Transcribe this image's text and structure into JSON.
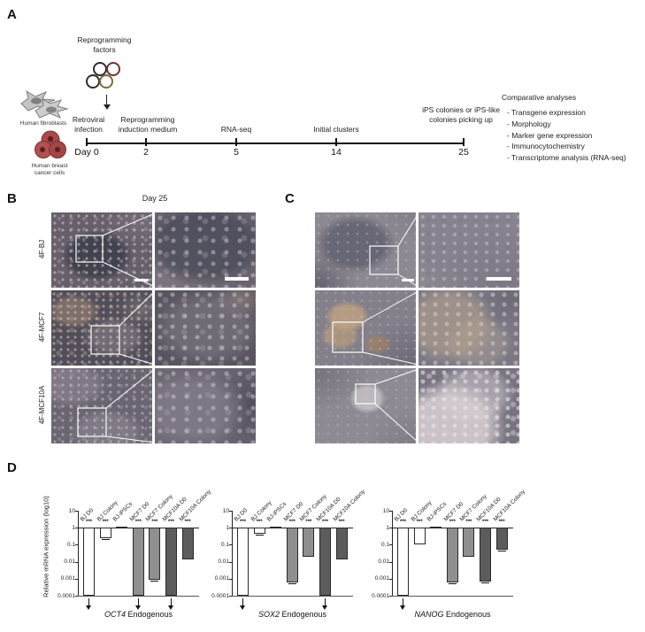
{
  "panels": {
    "a": "A",
    "b": "B",
    "c": "C",
    "d": "D"
  },
  "panel_a": {
    "reprogramming_factors": "Reprogramming factors",
    "cell_sources": [
      {
        "label": "Human fibroblasts"
      },
      {
        "label": "Human breast cancer cells"
      }
    ],
    "timeline": {
      "points": [
        {
          "day": "Day 0",
          "event": "Retroviral infection"
        },
        {
          "day": "2",
          "event": "Reprogramming induction medium"
        },
        {
          "day": "5",
          "event": "RNA-seq"
        },
        {
          "day": "14",
          "event": "Initial clusters"
        },
        {
          "day": "25",
          "event": "iPS colonies or iPS-like colonies picking up"
        }
      ]
    },
    "comparative": {
      "title": "Comparative analyses",
      "items": [
        "- Transgene expression",
        "- Morphology",
        "- Marker gene expression",
        "- Immunocytochemistry",
        "- Transcriptome analysis (RNA-seq)"
      ]
    }
  },
  "panel_b": {
    "header": "Day 25",
    "rows": [
      "4F-BJ",
      "4F-MCF7",
      "4F-MCF10A"
    ]
  },
  "panel_d": {
    "ylabel": "Relative mRNA expression (log10)"
  },
  "colors": {
    "bar_bj": "#ffffff",
    "bar_mcf7": "#8f8f8f",
    "bar_mcf10a": "#5c5c5c"
  },
  "chart_data": [
    {
      "type": "bar",
      "title_gene": "OCT4",
      "title_suffix": " Endogenous",
      "ylabel": "Relative mRNA expression (log10)",
      "yticks": [
        10,
        1,
        0.1,
        0.01,
        0.001,
        0.0001
      ],
      "ylim": [
        0.0001,
        10
      ],
      "baseline": 1,
      "categories": [
        "BJ D0",
        "BJ Colony",
        "BJ-iPSCs",
        "MCF7 D0",
        "MCF7 Colony",
        "MCF10A D0",
        "MCF10A Colony"
      ],
      "values": [
        0.0001,
        0.25,
        1.1,
        0.0001,
        0.0009,
        0.0001,
        0.014
      ],
      "below_detection": [
        true,
        false,
        false,
        true,
        false,
        true,
        false
      ],
      "significance": [
        "***",
        "***",
        "",
        "***",
        "***",
        "***",
        "***"
      ],
      "error_bars": [
        false,
        true,
        false,
        false,
        true,
        false,
        false
      ],
      "bar_colors": [
        "#ffffff",
        "#ffffff",
        "#ffffff",
        "#8f8f8f",
        "#8f8f8f",
        "#5c5c5c",
        "#5c5c5c"
      ]
    },
    {
      "type": "bar",
      "title_gene": "SOX2",
      "title_suffix": " Endogenous",
      "yticks": [
        10,
        1,
        0.1,
        0.01,
        0.001,
        0.0001
      ],
      "ylim": [
        0.0001,
        10
      ],
      "baseline": 1,
      "categories": [
        "BJ D0",
        "BJ Colony",
        "BJ-iPSCs",
        "MCF7 D0",
        "MCF7 Colony",
        "MCF10A D0",
        "MCF10A Colony"
      ],
      "values": [
        0.0001,
        0.42,
        1.1,
        0.0006,
        0.02,
        0.0001,
        0.013
      ],
      "below_detection": [
        true,
        false,
        false,
        false,
        false,
        true,
        false
      ],
      "significance": [
        "***",
        "***",
        "",
        "***",
        "***",
        "***",
        "***"
      ],
      "error_bars": [
        false,
        true,
        false,
        true,
        false,
        false,
        false
      ],
      "bar_colors": [
        "#ffffff",
        "#ffffff",
        "#ffffff",
        "#8f8f8f",
        "#8f8f8f",
        "#5c5c5c",
        "#5c5c5c"
      ]
    },
    {
      "type": "bar",
      "title_gene": "NANOG",
      "title_suffix": " Endogenous",
      "yticks": [
        10,
        1,
        0.1,
        0.01,
        0.001,
        0.0001
      ],
      "ylim": [
        0.0001,
        10
      ],
      "baseline": 1,
      "categories": [
        "BJ D0",
        "BJ Colony",
        "BJ-iPSCs",
        "MCF7 D0",
        "MCF7 Colony",
        "MCF10A D0",
        "MCF10A Colony"
      ],
      "values": [
        0.0001,
        0.11,
        1.05,
        0.0006,
        0.02,
        0.0007,
        0.05
      ],
      "below_detection": [
        true,
        false,
        false,
        false,
        false,
        false,
        false
      ],
      "significance": [
        "***",
        "***",
        "",
        "***",
        "***",
        "***",
        "***"
      ],
      "error_bars": [
        false,
        false,
        false,
        true,
        false,
        true,
        true
      ],
      "bar_colors": [
        "#ffffff",
        "#ffffff",
        "#ffffff",
        "#8f8f8f",
        "#8f8f8f",
        "#5c5c5c",
        "#5c5c5c"
      ]
    }
  ]
}
